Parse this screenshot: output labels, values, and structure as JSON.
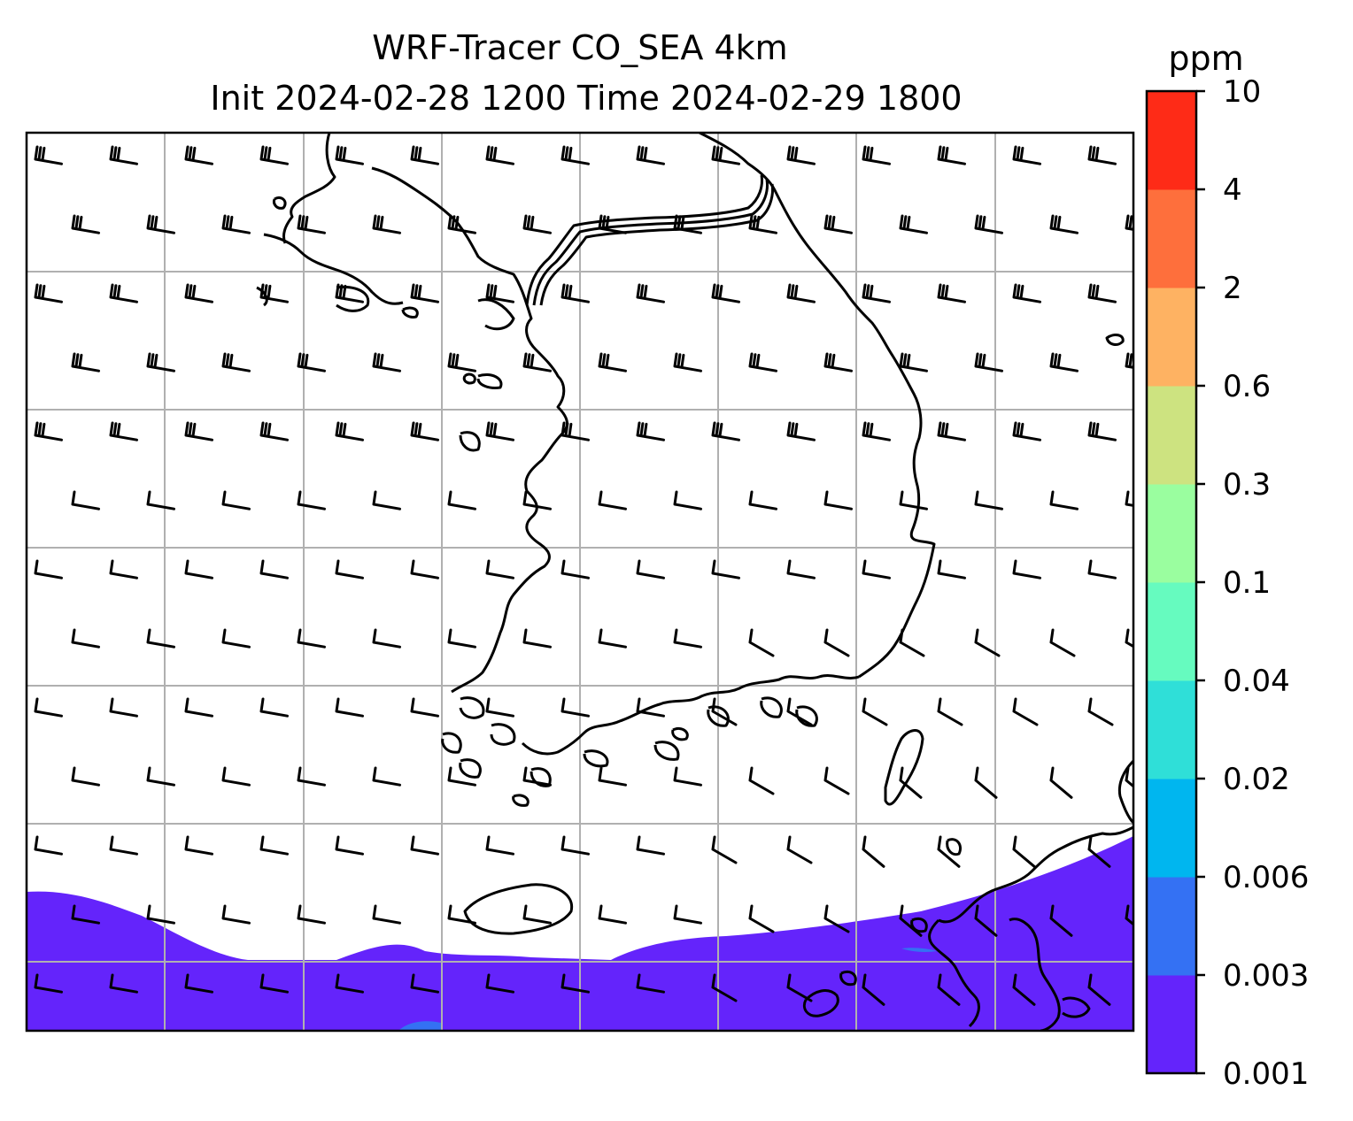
{
  "title": {
    "line1": "WRF-Tracer CO_SEA 4km",
    "line2": "Init 2024-02-28 1200 Time 2024-02-29 1800"
  },
  "colorbar": {
    "unit": "ppm",
    "ticks": [
      "0.001",
      "0.003",
      "0.006",
      "0.02",
      "0.04",
      "0.1",
      "0.3",
      "0.6",
      "2",
      "4",
      "10"
    ],
    "colors": [
      "#6424fb",
      "#3471f3",
      "#00b6ef",
      "#2fdfd8",
      "#66fbbf",
      "#9afe9f",
      "#cde380",
      "#feb262",
      "#fe6f3c",
      "#fe2b17"
    ]
  },
  "map": {
    "field_color": "#6424fb",
    "patch_color": "#3471f3",
    "grid_color": "#b0b0b0",
    "wind_barbs": "westerly to northwesterly flow"
  }
}
